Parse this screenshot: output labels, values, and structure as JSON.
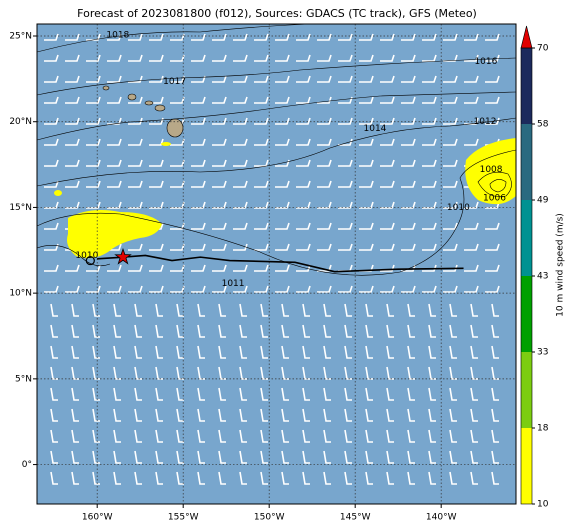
{
  "chart_data": {
    "type": "map",
    "title": "Forecast of 2023081800 (f012), Sources: GDACS (TC track), GFS (Meteo)",
    "xlim": [
      -163.5,
      -135.65
    ],
    "ylim": [
      -2.3,
      25.7
    ],
    "xticks": [
      {
        "value": -160,
        "label": "160°W"
      },
      {
        "value": -155,
        "label": "155°W"
      },
      {
        "value": -150,
        "label": "150°W"
      },
      {
        "value": -145,
        "label": "145°W"
      },
      {
        "value": -140,
        "label": "140°W"
      }
    ],
    "yticks": [
      {
        "value": 0,
        "label": "0°"
      },
      {
        "value": 5,
        "label": "5°N"
      },
      {
        "value": 10,
        "label": "10°N"
      },
      {
        "value": 15,
        "label": "15°N"
      },
      {
        "value": 20,
        "label": "20°N"
      },
      {
        "value": 25,
        "label": "25°N"
      }
    ],
    "grid": true,
    "ocean_color": "#78a6cd",
    "colorbar": {
      "label": "10 m wind speed (m/s)",
      "ticks": [
        10,
        18,
        33,
        43,
        49,
        58,
        70
      ],
      "colors": [
        "#ffff00",
        "#7ccd10",
        "#00a000",
        "#009292",
        "#2a6a80",
        "#1c2a5c"
      ],
      "extend_color": "#e00000"
    },
    "track": {
      "color": "#000000",
      "lon": [
        -160.0,
        -158.5,
        -157.2,
        -155.65,
        -154.0,
        -152.3,
        -148.5,
        -146.2,
        -142.5,
        -138.7
      ],
      "lat": [
        12.0,
        12.1,
        12.2,
        11.9,
        12.1,
        11.9,
        11.8,
        11.25,
        11.4,
        11.45
      ]
    },
    "storm_position": {
      "lon": -158.5,
      "lat": 12.1,
      "color": "#e00000"
    },
    "track_start": {
      "lon": -160.4,
      "lat": 11.9
    },
    "contours": [
      {
        "value": 1018,
        "lon": -158.8,
        "lat": 25.06
      },
      {
        "value": 1017,
        "lon": -155.5,
        "lat": 22.35
      },
      {
        "value": 1016,
        "lon": -137.4,
        "lat": 23.5
      },
      {
        "value": 1014,
        "lon": -143.85,
        "lat": 19.6
      },
      {
        "value": 1012,
        "lon": -137.45,
        "lat": 20.0
      },
      {
        "value": 1008,
        "lon": -137.1,
        "lat": 17.2
      },
      {
        "value": 1006,
        "lon": -136.9,
        "lat": 15.55
      },
      {
        "value": 1010,
        "lon": -139.0,
        "lat": 15.0
      },
      {
        "value": 1010,
        "lon": -160.6,
        "lat": 12.2
      },
      {
        "value": 1011,
        "lon": -152.1,
        "lat": 10.55
      }
    ]
  }
}
